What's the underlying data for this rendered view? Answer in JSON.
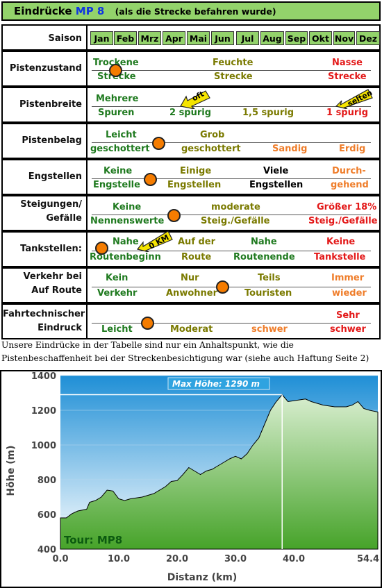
{
  "header": {
    "title": "Eindrücke",
    "mp": "MP 8",
    "subtitle": "(als die Strecke befahren wurde)"
  },
  "rows": {
    "saison": {
      "label": "Saison",
      "months": [
        "Jan",
        "Feb",
        "Mrz",
        "Apr",
        "Mai",
        "Jun",
        "Jul",
        "Aug",
        "Sep",
        "Okt",
        "Nov",
        "Dez"
      ]
    },
    "zustand": {
      "label": "Pistenzustand",
      "c1a": "Trockene",
      "c1b": "Strecke",
      "c2a": "Feuchte",
      "c2b": "Strecke",
      "c3a": "Nasse",
      "c3b": "Strecke"
    },
    "breite": {
      "label": "Pistenbreite",
      "c1a": "Mehrere",
      "c1b": "Spuren",
      "c2": "2 spurig",
      "c3": "1,5 spurig",
      "c4": "1 spurig",
      "tag_oft": "oft",
      "tag_selten": "selten"
    },
    "belag": {
      "label": "Pistenbelag",
      "c1a": "Leicht",
      "c1b": "geschottert",
      "c2a": "Grob",
      "c2b": "geschottert",
      "c3": "Sandig",
      "c4": "Erdig"
    },
    "eng": {
      "label": "Engstellen",
      "c1a": "Keine",
      "c1b": "Engstelle",
      "c2a": "Einige",
      "c2b": "Engstellen",
      "c3a": "Viele",
      "c3b": "Engstellen",
      "c4a": "Durch-",
      "c4b": "gehend"
    },
    "steig": {
      "label1": "Steigungen/",
      "label2": "Gefälle",
      "c1a": "Keine",
      "c1b": "Nennenswerte",
      "c2a": "moderate",
      "c2b": "Steig./Gefälle",
      "c3a": "Größer 18%",
      "c3b": "Steig./Gefälle"
    },
    "tank": {
      "label": "Tankstellen:",
      "c1a": "Nahe",
      "c1b": "Routenbeginn",
      "c2a": "Auf der",
      "c2b": "Route",
      "c3a": "Nahe",
      "c3b": "Routenende",
      "c4a": "Keine",
      "c4b": "Tankstelle",
      "tag": "0 KM"
    },
    "verkehr": {
      "label1": "Verkehr bei",
      "label2": "Auf Route",
      "c1a": "Kein",
      "c1b": "Verkehr",
      "c2a": "Nur",
      "c2b": "Anwohner",
      "c3a": "Teils",
      "c3b": "Touristen",
      "c4a": "Immer",
      "c4b": "wieder"
    },
    "fahr": {
      "label1": "Fahrtechnischer",
      "label2": "Eindruck",
      "c1": "Leicht",
      "c2": "Moderat",
      "c3": "schwer",
      "c4a": "Sehr",
      "c4b": "schwer"
    }
  },
  "caption": "Unsere Eindrücke in der Tabelle sind nur ein Anhaltspunkt, wie die Pistenbeschaffenheit bei der Streckenbesichtigung war (siehe auch Haftung Seite 2)",
  "chart_data": {
    "type": "area",
    "xlabel": "Distanz  (km)",
    "ylabel": "Höhe  (m)",
    "ylim": [
      400,
      1400
    ],
    "xlim": [
      0,
      54.4
    ],
    "yticks": [
      400,
      600,
      800,
      1000,
      1200,
      1400
    ],
    "xticks": [
      0.0,
      10.0,
      20.0,
      30.0,
      40.0,
      54.4
    ],
    "xtick_labels": [
      "0.0",
      "10.0",
      "20.0",
      "30.0",
      "40.0",
      "54.4"
    ],
    "annotation": "Max Höhe: 1290 m",
    "tour_label": "Tour: MP8",
    "max": {
      "x": 38,
      "y": 1290
    },
    "x": [
      0,
      1,
      2,
      3,
      4.5,
      5,
      6,
      7,
      8,
      9,
      10,
      11,
      12,
      14,
      16,
      18,
      19,
      20,
      21,
      22,
      23,
      24,
      25,
      26,
      27,
      28,
      29,
      30,
      31,
      32,
      33,
      34,
      35,
      36,
      37,
      38,
      39,
      40,
      41,
      42,
      43,
      44,
      45,
      46,
      47,
      48,
      49,
      50,
      51,
      52,
      53,
      54.4
    ],
    "y": [
      580,
      580,
      605,
      620,
      630,
      670,
      680,
      700,
      740,
      735,
      690,
      680,
      690,
      700,
      720,
      760,
      790,
      795,
      830,
      870,
      850,
      830,
      850,
      860,
      880,
      900,
      920,
      935,
      920,
      950,
      1000,
      1040,
      1120,
      1200,
      1250,
      1290,
      1250,
      1255,
      1260,
      1265,
      1250,
      1240,
      1230,
      1225,
      1220,
      1220,
      1220,
      1230,
      1250,
      1210,
      1200,
      1190
    ]
  }
}
